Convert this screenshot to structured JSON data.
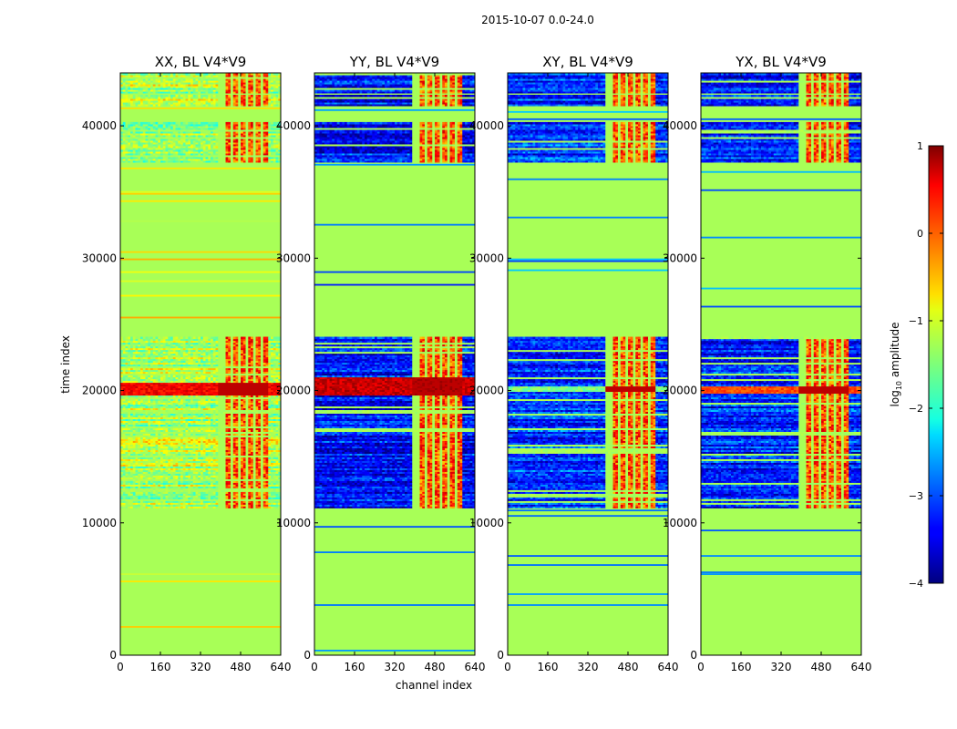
{
  "figure": {
    "suptitle": "2015-10-07 0.0-24.0"
  },
  "chart_data": {
    "type": "heatmap",
    "suptitle": "2015-10-07 0.0-24.0",
    "xlabel": "channel index",
    "ylabel": "time index",
    "xlim": [
      0,
      640
    ],
    "ylim": [
      0,
      44000
    ],
    "xticks": [
      0,
      160,
      320,
      480,
      640
    ],
    "yticks": [
      0,
      10000,
      20000,
      30000,
      40000
    ],
    "colormap": "jet",
    "colorbar": {
      "label_prefix": "log",
      "label_sub": "10",
      "label_suffix": " amplitude",
      "range": [
        -4,
        1
      ],
      "ticks": [
        -4,
        -3,
        -2,
        -1,
        0,
        1
      ],
      "tick_labels": [
        "−4",
        "−3",
        "−2",
        "−1",
        "0",
        "1"
      ]
    },
    "panels": [
      {
        "title": "XX, BL V4*V9",
        "polarization": "XX",
        "base": -1.25,
        "hot_band": [
          19600,
          20600
        ],
        "hot_value": 0.4
      },
      {
        "title": "YY, BL V4*V9",
        "polarization": "YY",
        "base": -3.3,
        "hot_band": [
          19600,
          21000
        ],
        "hot_value": 0.65
      },
      {
        "title": "XY, BL V4*V9",
        "polarization": "XY",
        "base": -3.1,
        "hot_band": [
          19900,
          20400
        ],
        "hot_value": -1.5
      },
      {
        "title": "YX, BL V4*V9",
        "polarization": "YX",
        "base": -3.2,
        "hot_band": [
          19800,
          20400
        ],
        "hot_value": 0.0
      }
    ],
    "flagged_value": -1.3,
    "masked_time_ranges": [
      [
        0,
        11200
      ],
      [
        24000,
        37300
      ],
      [
        40300,
        41500
      ],
      [
        42300,
        42500
      ]
    ],
    "active_time_ranges": [
      [
        11200,
        24000
      ],
      [
        37300,
        40300
      ],
      [
        41500,
        42300
      ],
      [
        42500,
        44000
      ]
    ],
    "rfi_channel_range": [
      390,
      590
    ],
    "rfi_columns": [
      [
        390,
        420
      ],
      [
        440,
        452
      ],
      [
        470,
        480
      ],
      [
        505,
        512
      ],
      [
        535,
        545
      ],
      [
        565,
        572
      ],
      [
        588,
        595
      ]
    ]
  }
}
